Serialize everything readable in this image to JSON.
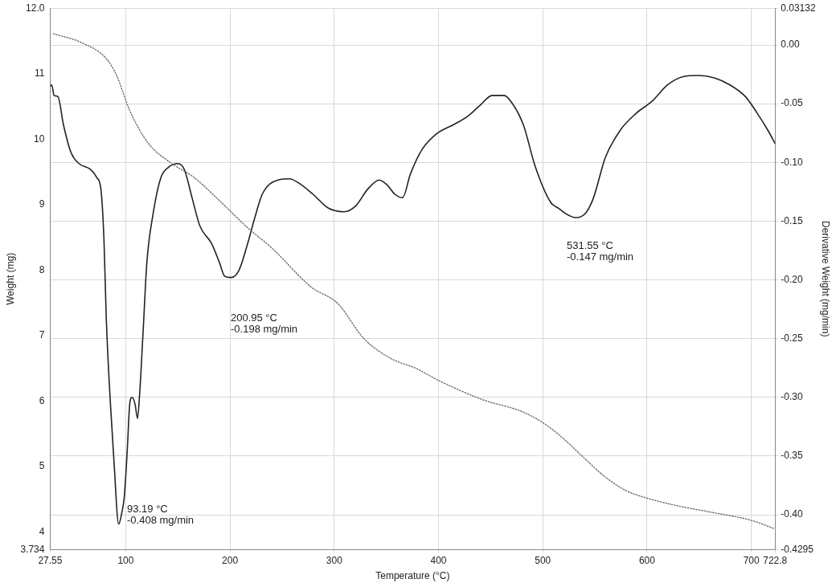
{
  "chart_data": {
    "type": "line",
    "xlabel": "Temperature (°C)",
    "ylabel": "Weight (mg)",
    "y2label": "Derivative Weight (mg/min)",
    "xlim": [
      27.55,
      722.8
    ],
    "xticks": [
      27.55,
      100,
      200,
      300,
      400,
      500,
      600,
      700,
      722.8
    ],
    "ylim": [
      3.734,
      12.0
    ],
    "yticks": [
      3.734,
      4,
      5,
      6,
      7,
      8,
      9,
      10,
      11,
      {
        "value": 12,
        "label": "12.0"
      }
    ],
    "y2lim": [
      -0.4295,
      0.03132
    ],
    "y2ticks": [
      -0.4295,
      {
        "value": -0.4,
        "label": "-0.40"
      },
      {
        "value": -0.35,
        "label": "-0.35"
      },
      {
        "value": -0.3,
        "label": "-0.30"
      },
      {
        "value": -0.25,
        "label": "-0.25"
      },
      {
        "value": -0.2,
        "label": "-0.20"
      },
      {
        "value": -0.15,
        "label": "-0.15"
      },
      {
        "value": -0.1,
        "label": "-0.10"
      },
      {
        "value": -0.05,
        "label": "-0.05"
      },
      {
        "value": 0,
        "label": "0.00"
      },
      0.03132
    ],
    "grid": true,
    "legend": false,
    "annotations": [
      "93.19 °C\n-0.408 mg/min",
      "200.95 °C\n-0.198 mg/min",
      "531.55 °C\n-0.147 mg/min"
    ],
    "series": [
      {
        "color": "#666666",
        "line_style": "dotted",
        "x": [
          30.5,
          56.7,
          81.4,
          91.1,
          103.8,
          121.0,
          141.2,
          165.9,
          191.3,
          216.0,
          240.6,
          278.0,
          303.4,
          328.1,
          354.3,
          378.2,
          400.6,
          442.5,
          479.9,
          500.1,
          520.3,
          539.7,
          559.9,
          580.1,
          599.5,
          629.4,
          662.3,
          699.7,
          722.1
        ],
        "values": [
          11.61,
          11.48,
          11.23,
          10.98,
          10.44,
          9.95,
          9.66,
          9.41,
          9.04,
          8.66,
          8.33,
          7.74,
          7.49,
          6.96,
          6.65,
          6.5,
          6.31,
          6.02,
          5.84,
          5.67,
          5.42,
          5.13,
          4.84,
          4.63,
          4.52,
          4.4,
          4.3,
          4.18,
          4.05
        ]
      },
      {
        "color": "#222222",
        "line_style": "solid",
        "axis": "y2",
        "x": [
          27.55,
          29.0,
          31.3,
          35.0,
          40.3,
          47.7,
          55.2,
          66.4,
          72.4,
          76.2,
          79.1,
          81.4,
          85.1,
          88.9,
          93.19,
          96.3,
          98.6,
          101.6,
          103.8,
          106.1,
          109.0,
          111.3,
          113.5,
          116.5,
          120.3,
          126.2,
          133.7,
          141.2,
          150.2,
          156.2,
          163.6,
          171.1,
          182.3,
          189.8,
          195.0,
          200.95,
          208.5,
          216.0,
          223.5,
          231.0,
          245.9,
          257.1,
          268.3,
          279.5,
          294.5,
          309.4,
          320.6,
          331.9,
          343.1,
          350.6,
          358.0,
          365.5,
          373.0,
          384.2,
          399.1,
          414.1,
          429.0,
          440.3,
          451.5,
          462.7,
          470.2,
          481.4,
          492.6,
          507.6,
          515.1,
          522.6,
          531.55,
          541.2,
          548.7,
          559.9,
          574.8,
          589.8,
          604.7,
          619.7,
          634.6,
          649.6,
          664.5,
          679.5,
          694.4,
          705.6,
          716.8,
          722.8
        ],
        "values": [
          -0.035,
          -0.034,
          -0.043,
          -0.044,
          -0.068,
          -0.092,
          -0.101,
          -0.106,
          -0.113,
          -0.123,
          -0.165,
          -0.234,
          -0.302,
          -0.357,
          -0.408,
          -0.398,
          -0.385,
          -0.343,
          -0.306,
          -0.3,
          -0.306,
          -0.318,
          -0.295,
          -0.247,
          -0.185,
          -0.144,
          -0.113,
          -0.104,
          -0.101,
          -0.106,
          -0.13,
          -0.154,
          -0.169,
          -0.185,
          -0.197,
          -0.198,
          -0.192,
          -0.172,
          -0.148,
          -0.127,
          -0.115,
          -0.114,
          -0.119,
          -0.127,
          -0.139,
          -0.142,
          -0.137,
          -0.123,
          -0.115,
          -0.119,
          -0.127,
          -0.13,
          -0.11,
          -0.089,
          -0.075,
          -0.068,
          -0.06,
          -0.051,
          -0.043,
          -0.043,
          -0.049,
          -0.068,
          -0.103,
          -0.134,
          -0.139,
          -0.144,
          -0.147,
          -0.143,
          -0.13,
          -0.096,
          -0.072,
          -0.058,
          -0.048,
          -0.034,
          -0.027,
          -0.026,
          -0.028,
          -0.034,
          -0.044,
          -0.058,
          -0.074,
          -0.084
        ]
      }
    ]
  }
}
